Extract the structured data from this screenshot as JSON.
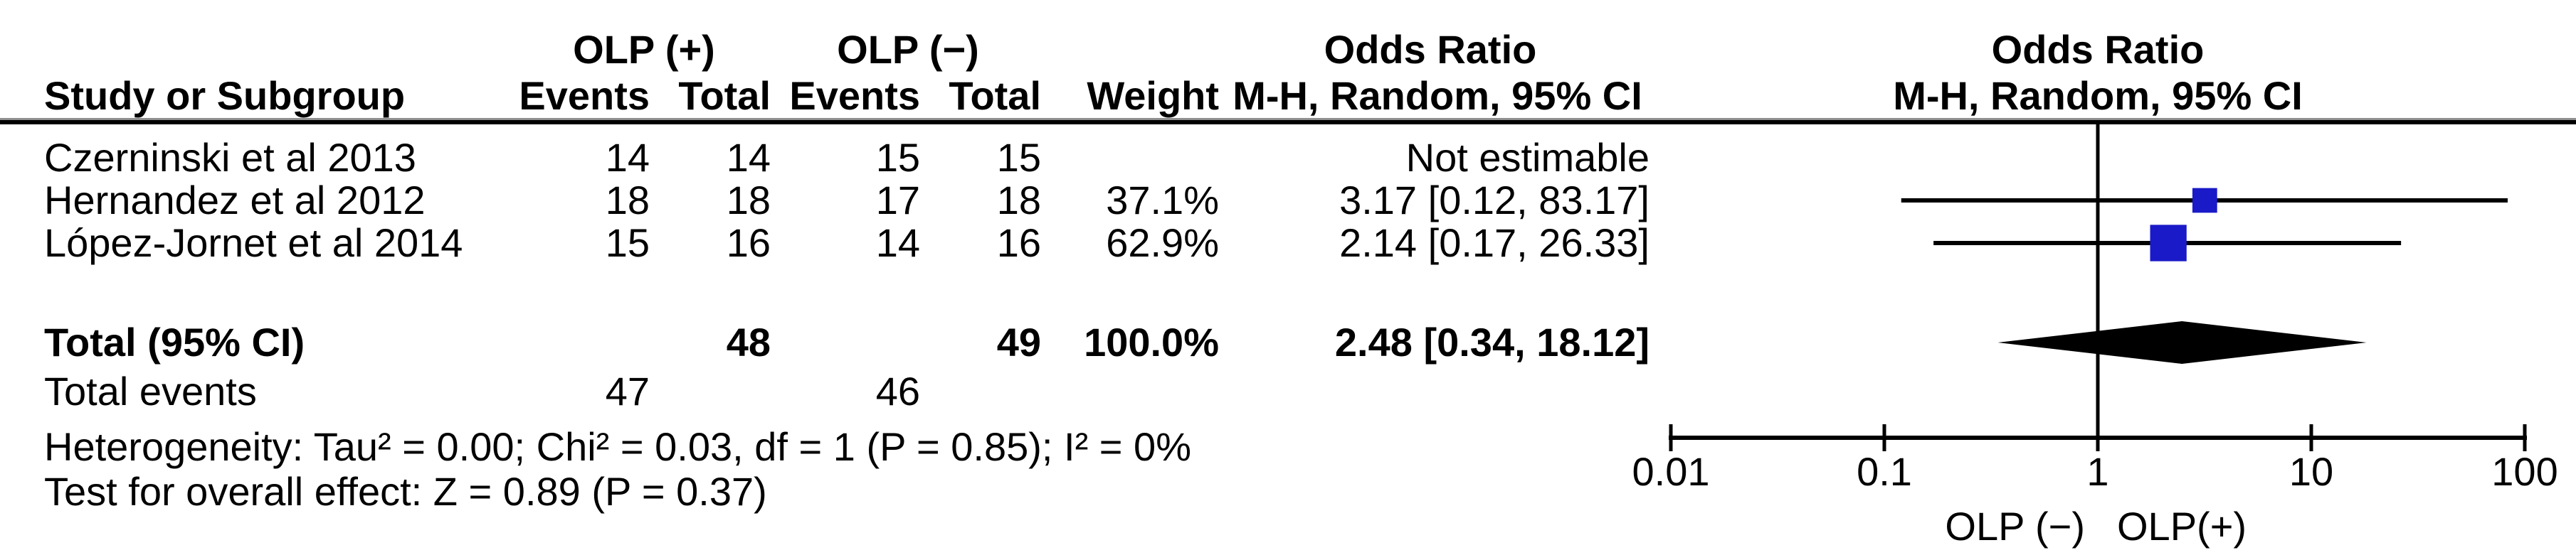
{
  "colors": {
    "marker_blue": "#1a1ac8",
    "line_black": "#000000",
    "rule_gray": "#909090"
  },
  "table": {
    "header": {
      "group1": "OLP (+)",
      "group2": "OLP (−)",
      "study": "Study or Subgroup",
      "events1": "Events",
      "total1": "Total",
      "events2": "Events",
      "total2": "Total",
      "weight": "Weight",
      "or_title": "Odds Ratio",
      "or_sub": "M-H, Random, 95% CI",
      "plot_title": "Odds Ratio",
      "plot_sub": "M-H, Random, 95% CI"
    },
    "rows": [
      {
        "study": "Czerninski et al 2013",
        "e1": "14",
        "t1": "14",
        "e2": "15",
        "t2": "15",
        "weight": "",
        "or_text": "Not estimable"
      },
      {
        "study": "Hernandez et al 2012",
        "e1": "18",
        "t1": "18",
        "e2": "17",
        "t2": "18",
        "weight": "37.1%",
        "or_text": "3.17 [0.12, 83.17]"
      },
      {
        "study": "López-Jornet et al 2014",
        "e1": "15",
        "t1": "16",
        "e2": "14",
        "t2": "16",
        "weight": "62.9%",
        "or_text": "2.14 [0.17, 26.33]"
      }
    ],
    "total_row": {
      "label": "Total (95% CI)",
      "t1": "48",
      "t2": "49",
      "weight": "100.0%",
      "or_text": "2.48 [0.34, 18.12]"
    },
    "total_events_row": {
      "label": "Total events",
      "e1": "47",
      "e2": "46"
    },
    "heterogeneity": "Heterogeneity: Tau² = 0.00; Chi² = 0.03, df = 1 (P = 0.85); I² = 0%",
    "overall_effect": "Test for overall effect: Z = 0.89 (P = 0.37)"
  },
  "chart_data": {
    "type": "forest",
    "effect_measure": "Odds Ratio, M-H, Random, 95% CI",
    "x_scale": "log10",
    "x_ticks": [
      0.01,
      0.1,
      1,
      10,
      100
    ],
    "x_tick_labels": [
      "0.01",
      "0.1",
      "1",
      "10",
      "100"
    ],
    "axis_label_left": "OLP (−)",
    "axis_label_right": "OLP(+)",
    "null_line": 1,
    "studies": [
      {
        "name": "Czerninski et al 2013",
        "or": null,
        "ci_low": null,
        "ci_high": null,
        "weight_pct": null,
        "note": "Not estimable"
      },
      {
        "name": "Hernandez et al 2012",
        "or": 3.17,
        "ci_low": 0.12,
        "ci_high": 83.17,
        "weight_pct": 37.1
      },
      {
        "name": "López-Jornet et al 2014",
        "or": 2.14,
        "ci_low": 0.17,
        "ci_high": 26.33,
        "weight_pct": 62.9
      }
    ],
    "total": {
      "label": "Total (95% CI)",
      "or": 2.48,
      "ci_low": 0.34,
      "ci_high": 18.12,
      "weight_pct": 100.0
    }
  }
}
